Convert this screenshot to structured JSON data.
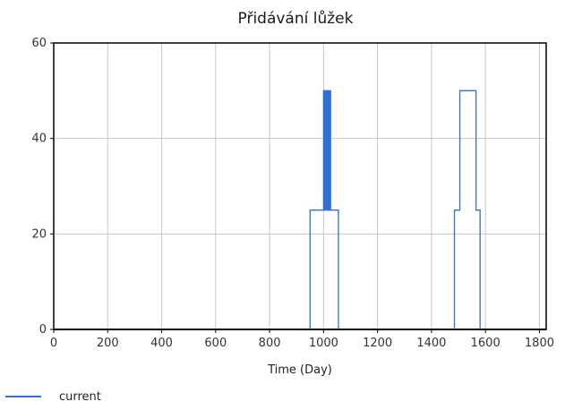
{
  "chart_data": {
    "type": "line",
    "title": "Přidávání lůžek",
    "xlabel": "Time (Day)",
    "ylabel": "",
    "xlim": [
      0,
      1825
    ],
    "ylim": [
      0,
      60
    ],
    "x_ticks": [
      0,
      200,
      400,
      600,
      800,
      1000,
      1200,
      1400,
      1600,
      1800
    ],
    "y_ticks": [
      0,
      20,
      40,
      60
    ],
    "grid": true,
    "legend_position": "bottom-left",
    "series": [
      {
        "name": "current",
        "color": "#2f6fd6",
        "points": [
          [
            0,
            0
          ],
          [
            950,
            0
          ],
          [
            950,
            25
          ],
          [
            1000,
            25
          ],
          [
            1000,
            50
          ],
          [
            1004,
            50
          ],
          [
            1004,
            25
          ],
          [
            1008,
            25
          ],
          [
            1008,
            50
          ],
          [
            1012,
            50
          ],
          [
            1012,
            25
          ],
          [
            1015,
            25
          ],
          [
            1015,
            50
          ],
          [
            1019,
            50
          ],
          [
            1019,
            25
          ],
          [
            1022,
            25
          ],
          [
            1022,
            50
          ],
          [
            1026,
            50
          ],
          [
            1026,
            25
          ],
          [
            1055,
            25
          ],
          [
            1055,
            0
          ],
          [
            1485,
            0
          ],
          [
            1485,
            25
          ],
          [
            1505,
            25
          ],
          [
            1505,
            50
          ],
          [
            1565,
            50
          ],
          [
            1565,
            25
          ],
          [
            1580,
            25
          ],
          [
            1580,
            0
          ],
          [
            1825,
            0
          ]
        ]
      },
      {
        "name": "",
        "color": "#1a1a1a",
        "points": [
          [
            0,
            0
          ],
          [
            1825,
            0
          ]
        ]
      }
    ]
  }
}
